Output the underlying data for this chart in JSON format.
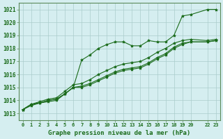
{
  "title": "Graphe pression niveau de la mer (hPa)",
  "background_color": "#d5eef0",
  "grid_color": "#aacccc",
  "line_color": "#1a6b1a",
  "marker_color": "#1a6b1a",
  "text_color": "#1a6b1a",
  "xlim": [
    0,
    23
  ],
  "ylim": [
    1013,
    1021
  ],
  "yticks": [
    1013,
    1014,
    1015,
    1016,
    1017,
    1018,
    1019,
    1020,
    1021
  ],
  "xtick_labels": [
    "0",
    "1",
    "2",
    "3",
    "4",
    "5",
    "6",
    "7",
    "8",
    "9",
    "10",
    "11",
    "12",
    "13",
    "14",
    "15",
    "16",
    "17",
    "18",
    "19",
    "20",
    "22",
    "23"
  ],
  "series": [
    [
      1013.3,
      1013.6,
      1013.8,
      1013.9,
      1014.0,
      1014.5,
      1015.0,
      1017.1,
      1017.5,
      1018.0,
      1018.3,
      1018.5,
      1018.5,
      1018.2,
      1018.2,
      1018.6,
      1018.5,
      1018.5,
      1019.0,
      1020.5,
      1020.6,
      1021.0,
      1021.0
    ],
    [
      1013.3,
      1013.7,
      1013.8,
      1014.0,
      1014.1,
      1014.5,
      1015.0,
      1015.0,
      1015.2,
      1015.5,
      1015.8,
      1016.1,
      1016.3,
      1016.4,
      1016.5,
      1016.8,
      1017.2,
      1017.5,
      1018.0,
      1018.3,
      1018.5,
      1018.5,
      1018.6
    ],
    [
      1013.3,
      1013.7,
      1013.8,
      1014.0,
      1014.1,
      1014.5,
      1015.0,
      1015.1,
      1015.3,
      1015.6,
      1015.9,
      1016.2,
      1016.4,
      1016.5,
      1016.6,
      1016.9,
      1017.3,
      1017.6,
      1018.1,
      1018.4,
      1018.5,
      1018.5,
      1018.6
    ],
    [
      1013.3,
      1013.7,
      1013.9,
      1014.1,
      1014.2,
      1014.7,
      1015.2,
      1015.3,
      1015.6,
      1016.0,
      1016.3,
      1016.6,
      1016.8,
      1016.9,
      1017.0,
      1017.3,
      1017.7,
      1018.0,
      1018.4,
      1018.6,
      1018.7,
      1018.6,
      1018.7
    ]
  ],
  "x_hours": [
    0,
    1,
    2,
    3,
    4,
    5,
    6,
    7,
    8,
    9,
    10,
    11,
    12,
    13,
    14,
    15,
    16,
    17,
    18,
    19,
    20,
    22,
    23
  ]
}
